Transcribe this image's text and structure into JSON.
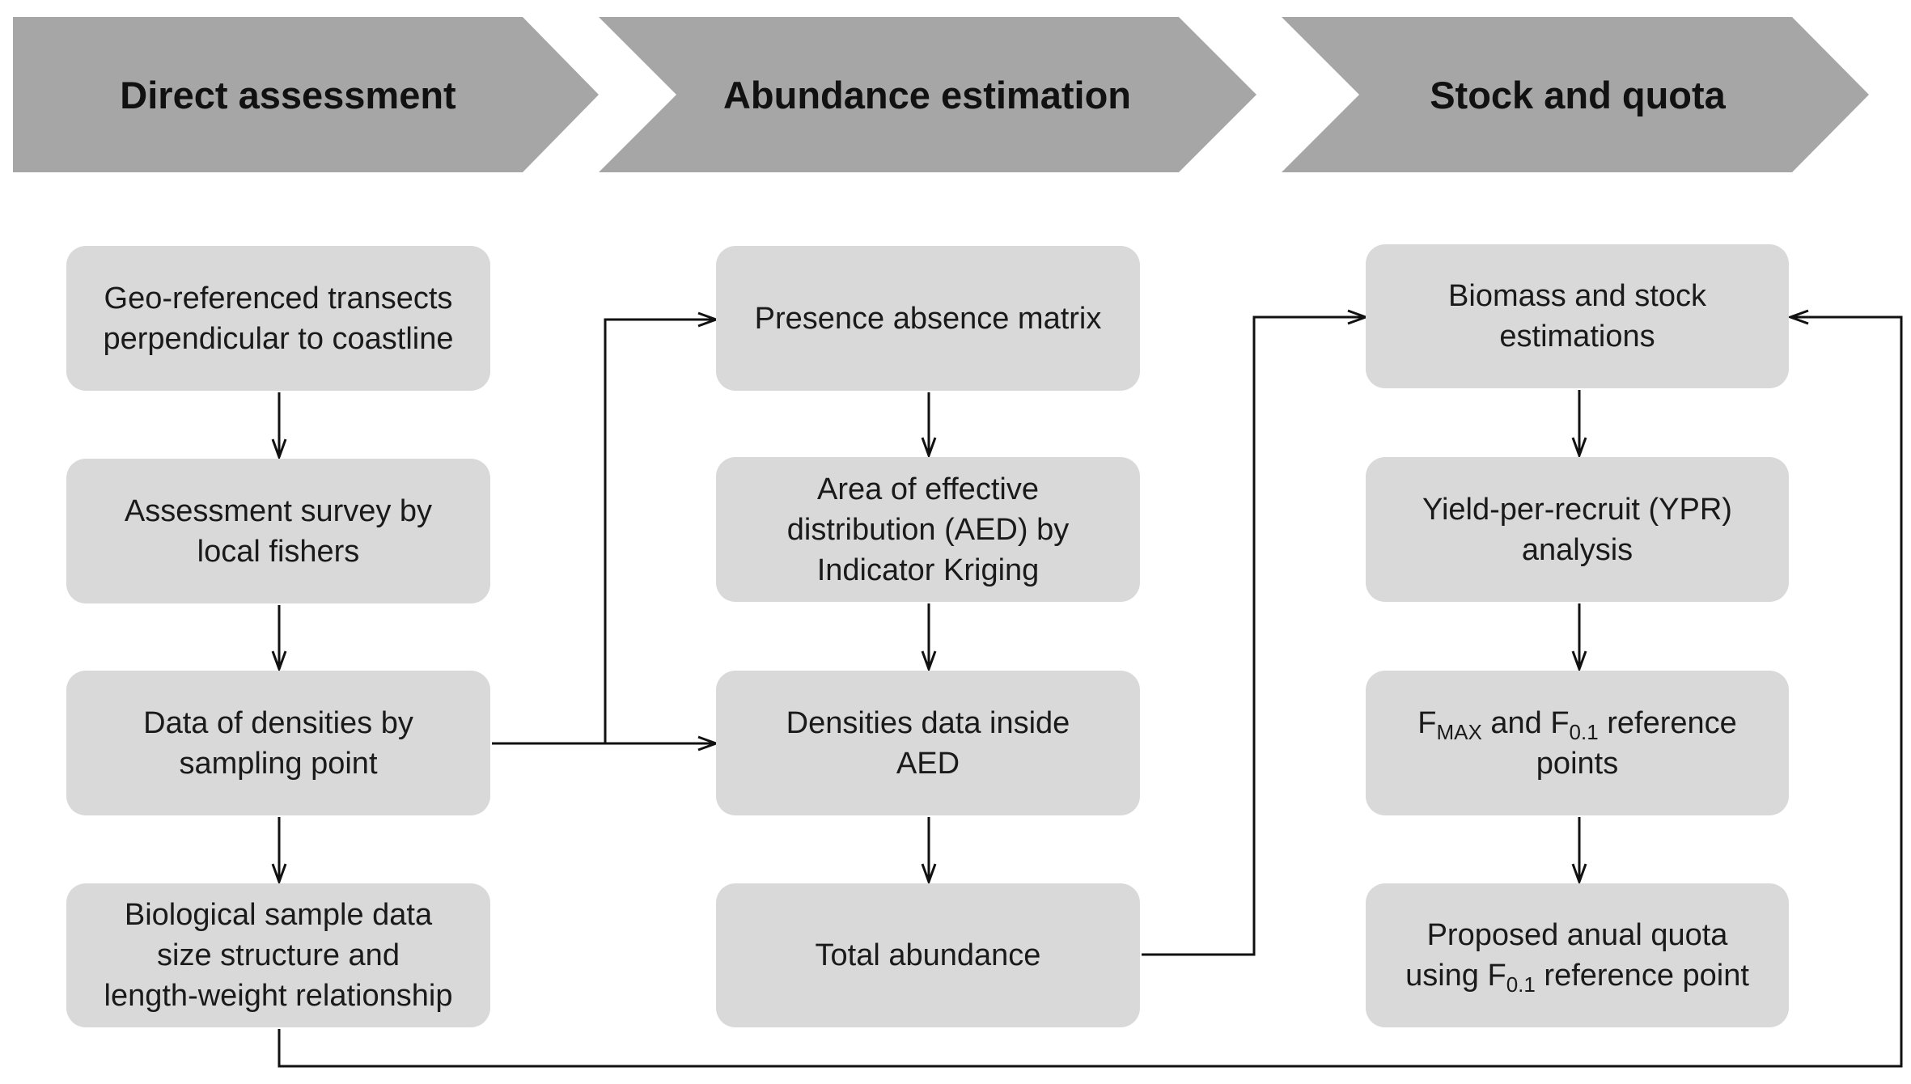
{
  "stages": [
    {
      "label": "Direct assessment"
    },
    {
      "label": "Abundance estimation"
    },
    {
      "label": "Stock and quota"
    }
  ],
  "boxes": {
    "geo_transects": {
      "lines": [
        "Geo-referenced transects",
        "perpendicular to coastline"
      ]
    },
    "assessment_survey": {
      "lines": [
        "Assessment survey by",
        "local fishers"
      ]
    },
    "densities_by_point": {
      "lines": [
        "Data of densities by",
        "sampling point"
      ]
    },
    "biological_sample": {
      "lines": [
        "Biological sample data",
        "size structure and",
        "length-weight relationship"
      ]
    },
    "presence_absence": {
      "lines": [
        "Presence absence matrix"
      ]
    },
    "aed": {
      "lines": [
        "Area of effective",
        "distribution (AED) by",
        "Indicator Kriging"
      ]
    },
    "densities_inside_aed": {
      "lines": [
        "Densities data inside",
        "AED"
      ]
    },
    "total_abundance": {
      "lines": [
        "Total abundance"
      ]
    },
    "biomass_stock": {
      "lines": [
        "Biomass and stock",
        "estimations"
      ]
    },
    "ypr": {
      "lines": [
        "Yield-per-recruit (YPR)",
        "analysis"
      ]
    },
    "ref_points": {
      "f_symbol": "F",
      "fmax_sub": "MAX",
      "and_text": " and ",
      "f01_sub": "0.1",
      "line1_tail": " reference",
      "line2": "points"
    },
    "quota": {
      "line1": "Proposed anual quota",
      "line2_prefix": "using ",
      "f_symbol": "F",
      "f01_sub": "0.1",
      "line2_tail": " reference point"
    }
  },
  "colors": {
    "chevron": "#a6a6a6",
    "box": "#d9d9d9",
    "connector": "#111111",
    "background": "#ffffff"
  }
}
